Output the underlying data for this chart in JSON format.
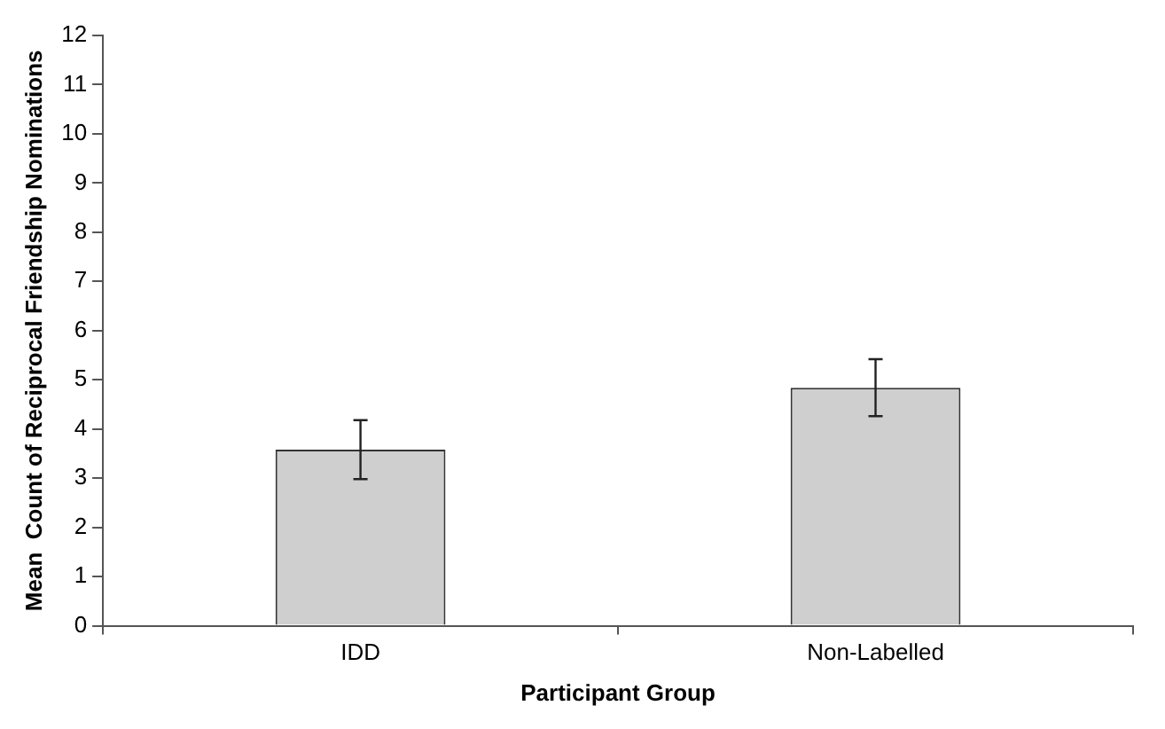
{
  "chart_data": {
    "type": "bar",
    "xlabel": "Participant Group",
    "ylabel": "Mean  Count of Reciprocal Friendship Nominations",
    "categories": [
      "IDD",
      "Non-Labelled"
    ],
    "values": [
      3.58,
      4.84
    ],
    "errors": [
      0.6,
      0.58
    ],
    "color": "#d0cfd0",
    "ylim": [
      0,
      12
    ],
    "yticks": [
      0,
      1,
      2,
      3,
      4,
      5,
      6,
      7,
      8,
      9,
      10,
      11,
      12
    ],
    "grid": false,
    "legend": false
  }
}
